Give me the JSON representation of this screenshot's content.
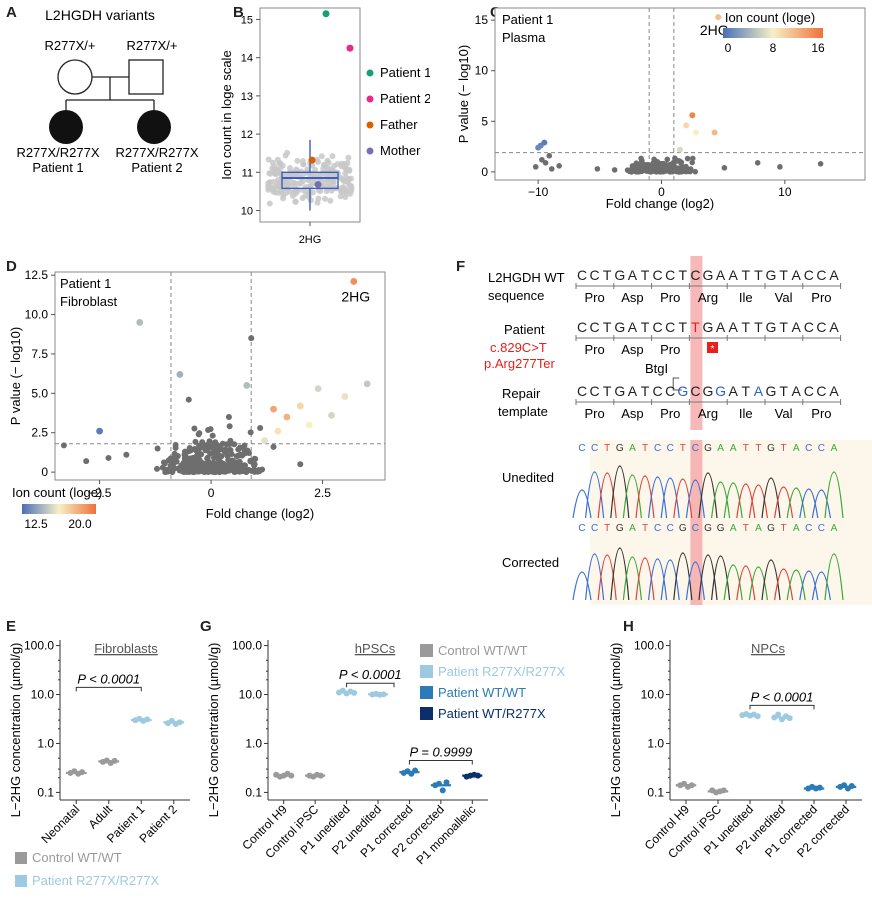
{
  "panel_labels": {
    "A": "A",
    "B": "B",
    "C": "C",
    "D": "D",
    "E": "E",
    "F": "F",
    "G": "G",
    "H": "H"
  },
  "colors": {
    "patient1": "#1a9e77",
    "patient2": "#e7298a",
    "father": "#d95f02",
    "mother": "#7570b3",
    "grey_point": "#c8c8c8",
    "dark_point": "#6e6e6e",
    "box_blue": "#3b5fc0",
    "control": "#9a9a9a",
    "patient_ko": "#9ecae1",
    "patient_wt": "#2a7bb8",
    "patient_mono": "#0b2f6b",
    "highlight": "#f4a6a6",
    "red_text": "#e8201a",
    "mutation_t": "#e8201a",
    "repair_blue": "#2b62c8"
  },
  "chart_data": [
    {
      "id": "A",
      "type": "pedigree",
      "title": "L2HGDH variants",
      "father_label": "R277X/+",
      "mother_label": "R277X/+",
      "child1_genotype": "R277X/R277X",
      "child1_name": "Patient 1",
      "child2_genotype": "R277X/R277X",
      "child2_name": "Patient 2"
    },
    {
      "id": "B",
      "type": "scatter",
      "ylabel": "Ion count in loge scale",
      "xlabel": "2HG",
      "ylim": [
        9.7,
        15.3
      ],
      "yticks": [
        "10",
        "11",
        "12",
        "13",
        "14",
        "15"
      ],
      "box": {
        "q1": 10.58,
        "median": 10.85,
        "q3": 11.0,
        "whisker_low": 10.0,
        "whisker_high": 11.85
      },
      "highlighted": [
        {
          "name": "Patient 1",
          "value": 15.15
        },
        {
          "name": "Patient 2",
          "value": 14.25
        },
        {
          "name": "Father",
          "value": 11.32
        },
        {
          "name": "Mother",
          "value": 10.68
        }
      ],
      "legend": [
        "Patient 1",
        "Patient 2",
        "Father",
        "Mother"
      ]
    },
    {
      "id": "C",
      "type": "scatter",
      "annotation": [
        "Patient 1",
        "Plasma"
      ],
      "xlabel": "Fold change (log2)",
      "ylabel": "P value (− log10)",
      "xlim": [
        -13.5,
        16.5
      ],
      "ylim": [
        -0.8,
        16.2
      ],
      "xticks": [
        "−10",
        "0",
        "10"
      ],
      "yticks": [
        "0",
        "5",
        "10",
        "15"
      ],
      "point_label": "2HG",
      "legend_title": "Ion count (loge)",
      "colorbar_ticks": [
        "0",
        "8",
        "16"
      ],
      "colored_points": [
        {
          "x": 4.6,
          "y": 15.3,
          "c": 0.7
        },
        {
          "x": 2.5,
          "y": 5.6,
          "c": 0.93
        },
        {
          "x": 2.0,
          "y": 4.6,
          "c": 0.6
        },
        {
          "x": 4.3,
          "y": 3.9,
          "c": 0.72
        },
        {
          "x": 2.8,
          "y": 3.9,
          "c": 0.5
        },
        {
          "x": 1.5,
          "y": 2.2,
          "c": 0.42
        },
        {
          "x": -9.5,
          "y": 2.9,
          "c": 0.05
        },
        {
          "x": -9.8,
          "y": 2.6,
          "c": 0.08
        },
        {
          "x": -10.0,
          "y": 2.4,
          "c": 0.1
        }
      ]
    },
    {
      "id": "D",
      "type": "scatter",
      "annotation": [
        "Patient 1",
        "Fibroblast"
      ],
      "xlabel": "Fold change (log2)",
      "ylabel": "P value (− log10)",
      "xlim": [
        -3.5,
        3.9
      ],
      "ylim": [
        -0.5,
        12.7
      ],
      "xticks": [
        "−2.5",
        "0",
        "2.5"
      ],
      "yticks": [
        "0",
        "2.5",
        "5.0",
        "7.5",
        "10.0",
        "12.5"
      ],
      "point_label": "2HG",
      "legend_title": "Ion count (loge)",
      "colorbar_ticks": [
        "12.5",
        "20.0"
      ],
      "colored_points": [
        {
          "x": 3.2,
          "y": 12.1,
          "c": 0.88
        },
        {
          "x": -2.5,
          "y": 2.6,
          "c": 0.05
        },
        {
          "x": 1.4,
          "y": 4.0,
          "c": 0.8
        },
        {
          "x": 1.7,
          "y": 3.5,
          "c": 0.75
        },
        {
          "x": 2.0,
          "y": 4.2,
          "c": 0.6
        },
        {
          "x": 2.4,
          "y": 5.3,
          "c": 0.4
        },
        {
          "x": 3.0,
          "y": 4.8,
          "c": 0.45
        },
        {
          "x": 3.5,
          "y": 5.6,
          "c": 0.35
        },
        {
          "x": 1.5,
          "y": 2.6,
          "c": 0.55
        },
        {
          "x": 2.2,
          "y": 3.0,
          "c": 0.5
        },
        {
          "x": 1.2,
          "y": 2.0,
          "c": 0.45
        },
        {
          "x": 2.7,
          "y": 3.6,
          "c": 0.4
        },
        {
          "x": -1.6,
          "y": 9.5,
          "c": 0.3
        },
        {
          "x": -0.7,
          "y": 6.2,
          "c": 0.25
        },
        {
          "x": 0.8,
          "y": 5.5,
          "c": 0.3
        }
      ]
    },
    {
      "id": "F",
      "type": "table",
      "wt_label": [
        "L2HGDH WT",
        "sequence"
      ],
      "wt_seq": "CCTGATCCTCGAATTGTACCA",
      "wt_aa": [
        "Pro",
        "Asp",
        "Pro",
        "Arg",
        "Ile",
        "Val",
        "Pro"
      ],
      "patient_label": "Patient",
      "patient_seq": "CCTGATCCTTGAATTGTACCA",
      "patient_aa": [
        "Pro",
        "Asp",
        "Pro"
      ],
      "mutation_label": [
        "c.829C>T",
        "p.Arg277Ter"
      ],
      "stop_mark": "*",
      "site_label": "BtgI",
      "repair_label": [
        "Repair",
        "template"
      ],
      "repair_seq": "CCTGATCCGCGGATAGTACCA",
      "repair_aa": [
        "Pro",
        "Asp",
        "Pro",
        "Arg",
        "Ile",
        "Val",
        "Pro"
      ],
      "unedited_label": "Unedited",
      "unedited_seq": "CCTGATCCTCGAATTGTACCA",
      "corrected_label": "Corrected",
      "corrected_seq": "CCTGATCCGCGGATAGTACCA"
    },
    {
      "id": "E",
      "type": "scatter",
      "title": "Fibroblasts",
      "ylabel": "L−2HG concentration (µmol/g)",
      "yticks": [
        "0.1",
        "1.0",
        "10.0",
        "100.0"
      ],
      "ylim_log": [
        0.07,
        130
      ],
      "categories": [
        "Neonatal",
        "Adult",
        "Patient 1",
        "Patient 2"
      ],
      "groups": [
        {
          "values": [
            0.25,
            0.27,
            0.24,
            0.26
          ],
          "mean": 0.25,
          "group": "control"
        },
        {
          "values": [
            0.42,
            0.45,
            0.4,
            0.44
          ],
          "mean": 0.43,
          "group": "control"
        },
        {
          "values": [
            3.0,
            3.2,
            2.9,
            3.1
          ],
          "mean": 3.0,
          "group": "patient_ko"
        },
        {
          "values": [
            2.6,
            2.9,
            2.5,
            2.7
          ],
          "mean": 2.7,
          "group": "patient_ko"
        }
      ],
      "stat_label": "P < 0.0001",
      "legend": [
        "Control WT/WT",
        "Patient R277X/R277X"
      ]
    },
    {
      "id": "G",
      "type": "scatter",
      "title": "hPSCs",
      "ylabel": "L−2HG concentration (µmol/g)",
      "yticks": [
        "0.1",
        "1.0",
        "10.0",
        "100.0"
      ],
      "ylim_log": [
        0.07,
        130
      ],
      "categories": [
        "Control H9",
        "Control iPSC",
        "P1 unedited",
        "P2 unedited",
        "P1 corrected",
        "P2 corrected",
        "P1 monoallelic"
      ],
      "groups": [
        {
          "values": [
            0.23,
            0.21,
            0.22,
            0.24,
            0.22
          ],
          "mean": 0.22,
          "group": "control"
        },
        {
          "values": [
            0.22,
            0.21,
            0.23,
            0.22
          ],
          "mean": 0.22,
          "group": "control"
        },
        {
          "values": [
            11.0,
            12.0,
            10.5,
            11.5,
            10.8
          ],
          "mean": 11.0,
          "group": "patient_ko"
        },
        {
          "values": [
            10.0,
            10.3,
            9.9,
            10.1
          ],
          "mean": 10.1,
          "group": "patient_ko"
        },
        {
          "values": [
            0.25,
            0.27,
            0.24,
            0.28
          ],
          "mean": 0.26,
          "group": "patient_wt"
        },
        {
          "values": [
            0.14,
            0.15,
            0.11,
            0.16
          ],
          "mean": 0.14,
          "group": "patient_wt"
        },
        {
          "values": [
            0.21,
            0.22,
            0.23,
            0.22
          ],
          "mean": 0.22,
          "group": "patient_mono"
        }
      ],
      "stat_labels": [
        "P < 0.0001",
        "P = 0.9999"
      ],
      "legend": [
        "Control WT/WT",
        "Patient R277X/R277X",
        "Patient WT/WT",
        "Patient WT/R277X"
      ]
    },
    {
      "id": "H",
      "type": "scatter",
      "title": "NPCs",
      "ylabel": "L−2HG concentration (µmol/g)",
      "yticks": [
        "0.1",
        "1.0",
        "10.0",
        "100.0"
      ],
      "ylim_log": [
        0.07,
        130
      ],
      "categories": [
        "Control H9",
        "Control iPSC",
        "P1 unedited",
        "P2 unedited",
        "P1 corrected",
        "P2 corrected"
      ],
      "groups": [
        {
          "values": [
            0.14,
            0.15,
            0.13,
            0.14
          ],
          "mean": 0.14,
          "group": "control"
        },
        {
          "values": [
            0.11,
            0.1,
            0.105,
            0.11
          ],
          "mean": 0.105,
          "group": "control"
        },
        {
          "values": [
            3.8,
            4.0,
            3.7,
            3.9,
            3.6
          ],
          "mean": 3.8,
          "group": "patient_ko"
        },
        {
          "values": [
            3.4,
            3.9,
            3.1,
            3.6,
            3.3
          ],
          "mean": 3.4,
          "group": "patient_ko"
        },
        {
          "values": [
            0.12,
            0.13,
            0.12,
            0.125
          ],
          "mean": 0.12,
          "group": "patient_wt"
        },
        {
          "values": [
            0.13,
            0.14,
            0.12,
            0.135
          ],
          "mean": 0.13,
          "group": "patient_wt"
        }
      ],
      "stat_label": "P < 0.0001"
    }
  ]
}
